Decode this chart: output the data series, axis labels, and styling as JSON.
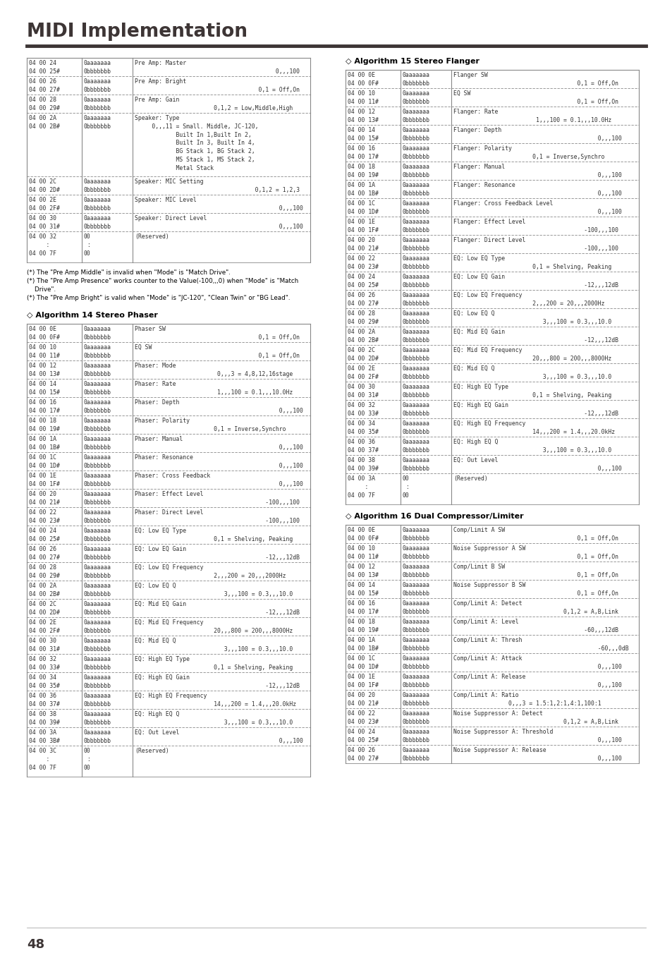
{
  "title": "MIDI Implementation",
  "page_number": "48",
  "bg_color": "#ffffff",
  "title_color": "#3d3535",
  "text_color": "#000000",
  "mono_color": "#333333",
  "table_border_color": "#888888",
  "header_bar_color": "#3d3535",
  "footnotes_left": [
    "(*) The \"Pre Amp Middle\" is invalid when \"Mode\" is \"Match Drive\".",
    "(*) The \"Pre Amp Presence\" works counter to the Value(-100,,,0) when \"Mode\" is \"Match",
    "    Drive\".",
    "(*) The \"Pre Amp Bright\" is valid when \"Mode\" is \"JC-120\", \"Clean Twin\" or \"BG Lead\"."
  ],
  "left_table_rows": [
    [
      "04 00 24\n04 00 25#",
      "0aaaaaaa\n0bbbbbbb",
      "Pre Amp: Master\n                                         0,,,100"
    ],
    [
      "04 00 26\n04 00 27#",
      "0aaaaaaa\n0bbbbbbb",
      "Pre Amp: Bright\n                                    0,1 = Off,On"
    ],
    [
      "04 00 28\n04 00 29#",
      "0aaaaaaa\n0bbbbbbb",
      "Pre Amp: Gain\n                       0,1,2 = Low,Middle,High"
    ],
    [
      "04 00 2A\n04 00 2B#",
      "0aaaaaaa\n0bbbbbbb",
      "Speaker: Type\n     0,,,11 = Small. Middle, JC-120,\n            Built In 1,Built In 2,\n            Built In 3, Built In 4,\n            BG Stack 1, BG Stack 2,\n            MS Stack 1, MS Stack 2,\n            Metal Stack"
    ],
    [
      "04 00 2C\n04 00 2D#",
      "0aaaaaaa\n0bbbbbbb",
      "Speaker: MIC Setting\n                                   0,1,2 = 1,2,3"
    ],
    [
      "04 00 2E\n04 00 2F#",
      "0aaaaaaa\n0bbbbbbb",
      "Speaker: MIC Level\n                                          0,,,100"
    ],
    [
      "04 00 30\n04 00 31#",
      "0aaaaaaa\n0bbbbbbb",
      "Speaker: Direct Level\n                                          0,,,100"
    ],
    [
      "04 00 32\n     :\n04 00 7F",
      "00\n :\n00",
      "(Reserved)"
    ]
  ],
  "left_table_row_heights": [
    26,
    26,
    26,
    90,
    26,
    26,
    26,
    44
  ],
  "alg14_title": "◇ Algorithm 14 Stereo Phaser",
  "alg14_rows": [
    [
      "04 00 0E\n04 00 0F#",
      "0aaaaaaa\n0bbbbbbb",
      "Phaser SW\n                                    0,1 = Off,On"
    ],
    [
      "04 00 10\n04 00 11#",
      "0aaaaaaa\n0bbbbbbb",
      "EQ SW\n                                    0,1 = Off,On"
    ],
    [
      "04 00 12\n04 00 13#",
      "0aaaaaaa\n0bbbbbbb",
      "Phaser: Mode\n                        0,,,3 = 4,8,12,16stage"
    ],
    [
      "04 00 14\n04 00 15#",
      "0aaaaaaa\n0bbbbbbb",
      "Phaser: Rate\n                        1,,,100 = 0.1,,,10.0Hz"
    ],
    [
      "04 00 16\n04 00 17#",
      "0aaaaaaa\n0bbbbbbb",
      "Phaser: Depth\n                                          0,,,100"
    ],
    [
      "04 00 18\n04 00 19#",
      "0aaaaaaa\n0bbbbbbb",
      "Phaser: Polarity\n                       0,1 = Inverse,Synchro"
    ],
    [
      "04 00 1A\n04 00 1B#",
      "0aaaaaaa\n0bbbbbbb",
      "Phaser: Manual\n                                          0,,,100"
    ],
    [
      "04 00 1C\n04 00 1D#",
      "0aaaaaaa\n0bbbbbbb",
      "Phaser: Resonance\n                                          0,,,100"
    ],
    [
      "04 00 1E\n04 00 1F#",
      "0aaaaaaa\n0bbbbbbb",
      "Phaser: Cross Feedback\n                                          0,,,100"
    ],
    [
      "04 00 20\n04 00 21#",
      "0aaaaaaa\n0bbbbbbb",
      "Phaser: Effect Level\n                                      -100,,,100"
    ],
    [
      "04 00 22\n04 00 23#",
      "0aaaaaaa\n0bbbbbbb",
      "Phaser: Direct Level\n                                      -100,,,100"
    ],
    [
      "04 00 24\n04 00 25#",
      "0aaaaaaa\n0bbbbbbb",
      "EQ: Low EQ Type\n                       0,1 = Shelving, Peaking"
    ],
    [
      "04 00 26\n04 00 27#",
      "0aaaaaaa\n0bbbbbbb",
      "EQ: Low EQ Gain\n                                      -12,,,12dB"
    ],
    [
      "04 00 28\n04 00 29#",
      "0aaaaaaa\n0bbbbbbb",
      "EQ: Low EQ Frequency\n                       2,,,200 = 20,,,2000Hz"
    ],
    [
      "04 00 2A\n04 00 2B#",
      "0aaaaaaa\n0bbbbbbb",
      "EQ: Low EQ Q\n                          3,,,100 = 0.3,,,10.0"
    ],
    [
      "04 00 2C\n04 00 2D#",
      "0aaaaaaa\n0bbbbbbb",
      "EQ: Mid EQ Gain\n                                      -12,,,12dB"
    ],
    [
      "04 00 2E\n04 00 2F#",
      "0aaaaaaa\n0bbbbbbb",
      "EQ: Mid EQ Frequency\n                       20,,,800 = 200,,,8000Hz"
    ],
    [
      "04 00 30\n04 00 31#",
      "0aaaaaaa\n0bbbbbbb",
      "EQ: Mid EQ Q\n                          3,,,100 = 0.3,,,10.0"
    ],
    [
      "04 00 32\n04 00 33#",
      "0aaaaaaa\n0bbbbbbb",
      "EQ: High EQ Type\n                       0,1 = Shelving, Peaking"
    ],
    [
      "04 00 34\n04 00 35#",
      "0aaaaaaa\n0bbbbbbb",
      "EQ: High EQ Gain\n                                      -12,,,12dB"
    ],
    [
      "04 00 36\n04 00 37#",
      "0aaaaaaa\n0bbbbbbb",
      "EQ: High EQ Frequency\n                       14,,,200 = 1.4,,,20.0kHz"
    ],
    [
      "04 00 38\n04 00 39#",
      "0aaaaaaa\n0bbbbbbb",
      "EQ: High EQ Q\n                          3,,,100 = 0.3,,,10.0"
    ],
    [
      "04 00 3A\n04 00 3B#",
      "0aaaaaaa\n0bbbbbbb",
      "EQ: Out Level\n                                          0,,,100"
    ],
    [
      "04 00 3C\n     :\n04 00 7F",
      "00\n :\n00",
      "(Reserved)"
    ]
  ],
  "alg14_row_heights": [
    26,
    26,
    26,
    26,
    26,
    26,
    26,
    26,
    26,
    26,
    26,
    26,
    26,
    26,
    26,
    26,
    26,
    26,
    26,
    26,
    26,
    26,
    26,
    44
  ],
  "alg15_title": "◇ Algorithm 15 Stereo Flanger",
  "alg15_rows": [
    [
      "04 00 0E\n04 00 0F#",
      "0aaaaaaa\n0bbbbbbb",
      "Flanger SW\n                                    0,1 = Off,On"
    ],
    [
      "04 00 10\n04 00 11#",
      "0aaaaaaa\n0bbbbbbb",
      "EQ SW\n                                    0,1 = Off,On"
    ],
    [
      "04 00 12\n04 00 13#",
      "0aaaaaaa\n0bbbbbbb",
      "Flanger: Rate\n                        1,,,100 = 0.1,,,10.0Hz"
    ],
    [
      "04 00 14\n04 00 15#",
      "0aaaaaaa\n0bbbbbbb",
      "Flanger: Depth\n                                          0,,,100"
    ],
    [
      "04 00 16\n04 00 17#",
      "0aaaaaaa\n0bbbbbbb",
      "Flanger: Polarity\n                       0,1 = Inverse,Synchro"
    ],
    [
      "04 00 18\n04 00 19#",
      "0aaaaaaa\n0bbbbbbb",
      "Flanger: Manual\n                                          0,,,100"
    ],
    [
      "04 00 1A\n04 00 1B#",
      "0aaaaaaa\n0bbbbbbb",
      "Flanger: Resonance\n                                          0,,,100"
    ],
    [
      "04 00 1C\n04 00 1D#",
      "0aaaaaaa\n0bbbbbbb",
      "Flanger: Cross Feedback Level\n                                          0,,,100"
    ],
    [
      "04 00 1E\n04 00 1F#",
      "0aaaaaaa\n0bbbbbbb",
      "Flanger: Effect Level\n                                      -100,,,100"
    ],
    [
      "04 00 20\n04 00 21#",
      "0aaaaaaa\n0bbbbbbb",
      "Flanger: Direct Level\n                                      -100,,,100"
    ],
    [
      "04 00 22\n04 00 23#",
      "0aaaaaaa\n0bbbbbbb",
      "EQ: Low EQ Type\n                       0,1 = Shelving, Peaking"
    ],
    [
      "04 00 24\n04 00 25#",
      "0aaaaaaa\n0bbbbbbb",
      "EQ: Low EQ Gain\n                                      -12,,,12dB"
    ],
    [
      "04 00 26\n04 00 27#",
      "0aaaaaaa\n0bbbbbbb",
      "EQ: Low EQ Frequency\n                       2,,,200 = 20,,,2000Hz"
    ],
    [
      "04 00 28\n04 00 29#",
      "0aaaaaaa\n0bbbbbbb",
      "EQ: Low EQ Q\n                          3,,,100 = 0.3,,,10.0"
    ],
    [
      "04 00 2A\n04 00 2B#",
      "0aaaaaaa\n0bbbbbbb",
      "EQ: Mid EQ Gain\n                                      -12,,,12dB"
    ],
    [
      "04 00 2C\n04 00 2D#",
      "0aaaaaaa\n0bbbbbbb",
      "EQ: Mid EQ Frequency\n                       20,,,800 = 200,,,8000Hz"
    ],
    [
      "04 00 2E\n04 00 2F#",
      "0aaaaaaa\n0bbbbbbb",
      "EQ: Mid EQ Q\n                          3,,,100 = 0.3,,,10.0"
    ],
    [
      "04 00 30\n04 00 31#",
      "0aaaaaaa\n0bbbbbbb",
      "EQ: High EQ Type\n                       0,1 = Shelving, Peaking"
    ],
    [
      "04 00 32\n04 00 33#",
      "0aaaaaaa\n0bbbbbbb",
      "EQ: High EQ Gain\n                                      -12,,,12dB"
    ],
    [
      "04 00 34\n04 00 35#",
      "0aaaaaaa\n0bbbbbbb",
      "EQ: High EQ Frequency\n                       14,,,200 = 1.4,,,20.0kHz"
    ],
    [
      "04 00 36\n04 00 37#",
      "0aaaaaaa\n0bbbbbbb",
      "EQ: High EQ Q\n                          3,,,100 = 0.3,,,10.0"
    ],
    [
      "04 00 38\n04 00 39#",
      "0aaaaaaa\n0bbbbbbb",
      "EQ: Out Level\n                                          0,,,100"
    ],
    [
      "04 00 3A\n     :\n04 00 7F",
      "00\n :\n00",
      "(Reserved)"
    ]
  ],
  "alg15_row_heights": [
    26,
    26,
    26,
    26,
    26,
    26,
    26,
    26,
    26,
    26,
    26,
    26,
    26,
    26,
    26,
    26,
    26,
    26,
    26,
    26,
    26,
    26,
    44
  ],
  "alg16_title": "◇ Algorithm 16 Dual Compressor/Limiter",
  "alg16_rows": [
    [
      "04 00 0E\n04 00 0F#",
      "0aaaaaaa\n0bbbbbbb",
      "Comp/Limit A SW\n                                    0,1 = Off,On"
    ],
    [
      "04 00 10\n04 00 11#",
      "0aaaaaaa\n0bbbbbbb",
      "Noise Suppressor A SW\n                                    0,1 = Off,On"
    ],
    [
      "04 00 12\n04 00 13#",
      "0aaaaaaa\n0bbbbbbb",
      "Comp/Limit B SW\n                                    0,1 = Off,On"
    ],
    [
      "04 00 14\n04 00 15#",
      "0aaaaaaa\n0bbbbbbb",
      "Noise Suppressor B SW\n                                    0,1 = Off,On"
    ],
    [
      "04 00 16\n04 00 17#",
      "0aaaaaaa\n0bbbbbbb",
      "Comp/Limit A: Detect\n                                0,1,2 = A,B,Link"
    ],
    [
      "04 00 18\n04 00 19#",
      "0aaaaaaa\n0bbbbbbb",
      "Comp/Limit A: Level\n                                      -60,,,12dB"
    ],
    [
      "04 00 1A\n04 00 1B#",
      "0aaaaaaa\n0bbbbbbb",
      "Comp/Limit A: Thresh\n                                          -60,,,0dB"
    ],
    [
      "04 00 1C\n04 00 1D#",
      "0aaaaaaa\n0bbbbbbb",
      "Comp/Limit A: Attack\n                                          0,,,100"
    ],
    [
      "04 00 1E\n04 00 1F#",
      "0aaaaaaa\n0bbbbbbb",
      "Comp/Limit A: Release\n                                          0,,,100"
    ],
    [
      "04 00 20\n04 00 21#",
      "0aaaaaaa\n0bbbbbbb",
      "Comp/Limit A: Ratio\n                0,,,3 = 1.5:1,2:1,4:1,100:1"
    ],
    [
      "04 00 22\n04 00 23#",
      "0aaaaaaa\n0bbbbbbb",
      "Noise Suppressor A: Detect\n                                0,1,2 = A,B,Link"
    ],
    [
      "04 00 24\n04 00 25#",
      "0aaaaaaa\n0bbbbbbb",
      "Noise Suppressor A: Threshold\n                                          0,,,100"
    ],
    [
      "04 00 26\n04 00 27#",
      "0aaaaaaa\n0bbbbbbb",
      "Noise Suppressor A: Release\n                                          0,,,100"
    ]
  ],
  "alg16_row_heights": [
    26,
    26,
    26,
    26,
    26,
    26,
    26,
    26,
    26,
    26,
    26,
    26,
    26
  ]
}
